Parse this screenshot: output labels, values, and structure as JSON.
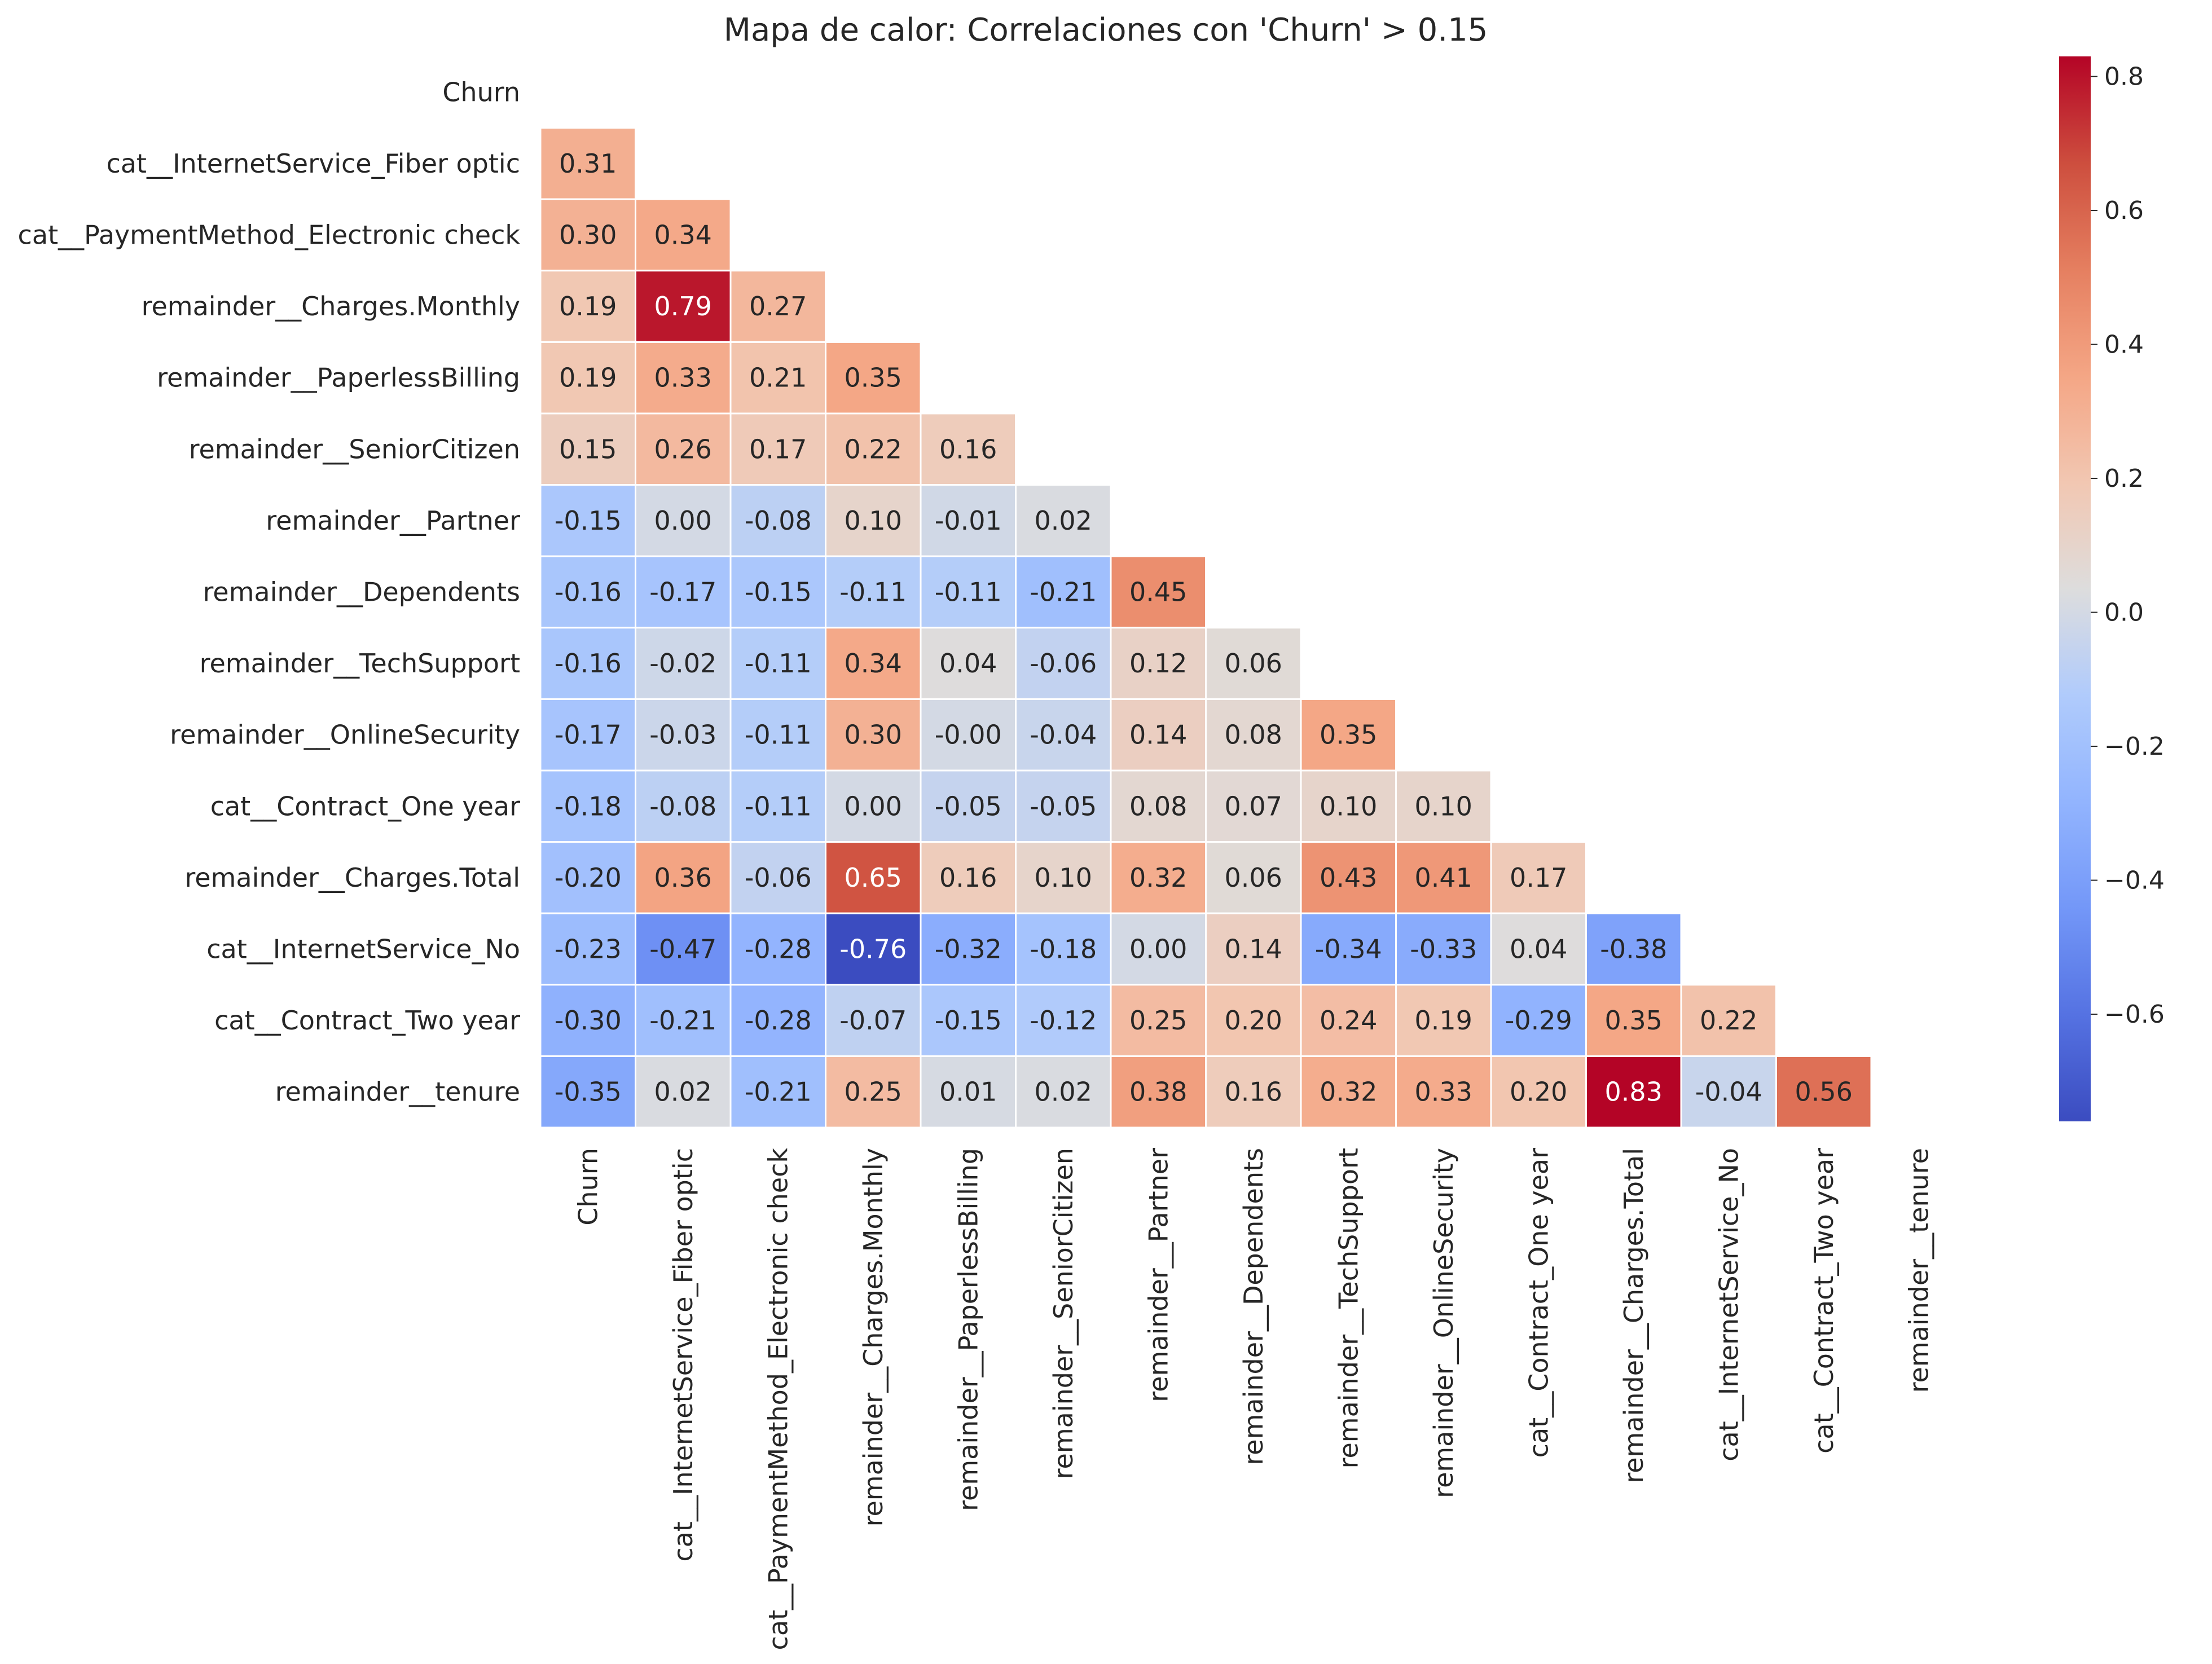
{
  "chart_data": {
    "type": "heatmap",
    "title": "Mapa de calor: Correlaciones con 'Churn' > 0.15",
    "labels": [
      "Churn",
      "cat__InternetService_Fiber optic",
      "cat__PaymentMethod_Electronic check",
      "remainder__Charges.Monthly",
      "remainder__PaperlessBilling",
      "remainder__SeniorCitizen",
      "remainder__Partner",
      "remainder__Dependents",
      "remainder__TechSupport",
      "remainder__OnlineSecurity",
      "cat__Contract_One year",
      "remainder__Charges.Total",
      "cat__InternetService_No",
      "cat__Contract_Two year",
      "remainder__tenure"
    ],
    "mask": "upper triangle incl. diagonal",
    "values": [
      [],
      [
        0.31
      ],
      [
        0.3,
        0.34
      ],
      [
        0.19,
        0.79,
        0.27
      ],
      [
        0.19,
        0.33,
        0.21,
        0.35
      ],
      [
        0.15,
        0.26,
        0.17,
        0.22,
        0.16
      ],
      [
        -0.15,
        0.0,
        -0.08,
        0.1,
        -0.01,
        0.02
      ],
      [
        -0.16,
        -0.17,
        -0.15,
        -0.11,
        -0.11,
        -0.21,
        0.45
      ],
      [
        -0.16,
        -0.02,
        -0.11,
        0.34,
        0.04,
        -0.06,
        0.12,
        0.06
      ],
      [
        -0.17,
        -0.03,
        -0.11,
        0.3,
        -0.0,
        -0.04,
        0.14,
        0.08,
        0.35
      ],
      [
        -0.18,
        -0.08,
        -0.11,
        0.0,
        -0.05,
        -0.05,
        0.08,
        0.07,
        0.1,
        0.1
      ],
      [
        -0.2,
        0.36,
        -0.06,
        0.65,
        0.16,
        0.1,
        0.32,
        0.06,
        0.43,
        0.41,
        0.17
      ],
      [
        -0.23,
        -0.47,
        -0.28,
        -0.76,
        -0.32,
        -0.18,
        0.0,
        0.14,
        -0.34,
        -0.33,
        0.04,
        -0.38
      ],
      [
        -0.3,
        -0.21,
        -0.28,
        -0.07,
        -0.15,
        -0.12,
        0.25,
        0.2,
        0.24,
        0.19,
        -0.29,
        0.35,
        0.22
      ],
      [
        -0.35,
        0.02,
        -0.21,
        0.25,
        0.01,
        0.02,
        0.38,
        0.16,
        0.32,
        0.33,
        0.2,
        0.83,
        -0.04,
        0.56
      ]
    ],
    "display_values": [
      [],
      [
        "0.31"
      ],
      [
        "0.30",
        "0.34"
      ],
      [
        "0.19",
        "0.79",
        "0.27"
      ],
      [
        "0.19",
        "0.33",
        "0.21",
        "0.35"
      ],
      [
        "0.15",
        "0.26",
        "0.17",
        "0.22",
        "0.16"
      ],
      [
        "-0.15",
        "0.00",
        "-0.08",
        "0.10",
        "-0.01",
        "0.02"
      ],
      [
        "-0.16",
        "-0.17",
        "-0.15",
        "-0.11",
        "-0.11",
        "-0.21",
        "0.45"
      ],
      [
        "-0.16",
        "-0.02",
        "-0.11",
        "0.34",
        "0.04",
        "-0.06",
        "0.12",
        "0.06"
      ],
      [
        "-0.17",
        "-0.03",
        "-0.11",
        "0.30",
        "-0.00",
        "-0.04",
        "0.14",
        "0.08",
        "0.35"
      ],
      [
        "-0.18",
        "-0.08",
        "-0.11",
        "0.00",
        "-0.05",
        "-0.05",
        "0.08",
        "0.07",
        "0.10",
        "0.10"
      ],
      [
        "-0.20",
        "0.36",
        "-0.06",
        "0.65",
        "0.16",
        "0.10",
        "0.32",
        "0.06",
        "0.43",
        "0.41",
        "0.17"
      ],
      [
        "-0.23",
        "-0.47",
        "-0.28",
        "-0.76",
        "-0.32",
        "-0.18",
        "0.00",
        "0.14",
        "-0.34",
        "-0.33",
        "0.04",
        "-0.38"
      ],
      [
        "-0.30",
        "-0.21",
        "-0.28",
        "-0.07",
        "-0.15",
        "-0.12",
        "0.25",
        "0.20",
        "0.24",
        "0.19",
        "-0.29",
        "0.35",
        "0.22"
      ],
      [
        "-0.35",
        "0.02",
        "-0.21",
        "0.25",
        "0.01",
        "0.02",
        "0.38",
        "0.16",
        "0.32",
        "0.33",
        "0.20",
        "0.83",
        "-0.04",
        "0.56"
      ]
    ],
    "colormap": "coolwarm",
    "vmin": -0.76,
    "vmax": 0.83,
    "colorbar": {
      "position": "right",
      "ticks": [
        0.8,
        0.6,
        0.4,
        0.2,
        0.0,
        -0.2,
        -0.4,
        -0.6
      ],
      "tick_labels": [
        "0.8",
        "0.6",
        "0.4",
        "0.2",
        "0.0",
        "−0.2",
        "−0.4",
        "−0.6"
      ]
    },
    "grid": false,
    "cell_border_color": "#ffffff"
  }
}
